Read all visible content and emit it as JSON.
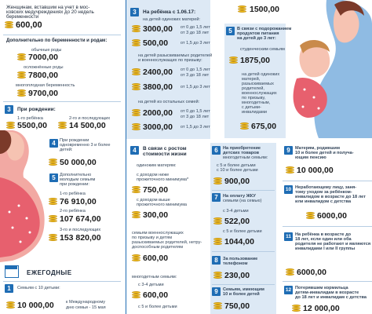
{
  "left": {
    "top_amt": "600,00",
    "top_text": [
      "Женщинам, вставшим на учет в мос-",
      "ковских медучреждениях до 20 недель",
      "беременности"
    ],
    "s2_title": "Дополнительно по беременности и родам:",
    "s2_l1": "обычные роды",
    "s2_a1": "7000,00",
    "s2_l2": "осложнённые роды",
    "s2_a2": "7800,00",
    "s2_l3": "многоплодная беременность",
    "s2_a3": "9700,00",
    "s3_num": "3",
    "s3_title": "При рождении:",
    "s3_l1": "1-го ребёнка",
    "s3_a1": "5500,00",
    "s3_l2": "2-го и последующих",
    "s3_a2": "14 500,00",
    "s4_num": "4",
    "s4_text": [
      "При рождении",
      "одновременно 3 и более",
      "детей:"
    ],
    "s4_amt": "50 000,00",
    "s5_num": "5",
    "s5_text": [
      "Дополнительно",
      "молодым семьям",
      "при рождении:"
    ],
    "s5_l1": "1-го ребёнка",
    "s5_a1": "76 910,00",
    "s5_l2": "2-го ребёнка",
    "s5_a2": "107 674,00",
    "s5_l3": "3-го и последующих",
    "s5_a3": "153 820,00",
    "yearly_title": "ЕЖЕГОДНЫЕ",
    "y1_num": "1",
    "y1_text": "Семьям с 10 детьми:",
    "y1_amt": "10 000,00",
    "y1_note": [
      "к Международному",
      "дню семьи - 15 мая"
    ]
  },
  "middle": {
    "top_amt": "1500,00",
    "m3_num": "3",
    "m3_title": "На ребёнка с 1.06.17:",
    "m3_sub1": "на детей одиноких матерей:",
    "m3_a1": "3000,00",
    "m3_r1": "от 0 до 1,5 лет",
    "m3_a1b": "3000,00",
    "m3_r1b": "от 3 до 18 лет",
    "m3_a2": "500,00",
    "m3_r2": "от 1,5 до 3 лет",
    "m3_sub2": [
      "на детей разыскиваемых родителей",
      "и военнослужащих по призыву:"
    ],
    "m3_a3": "2400,00",
    "m3_r3": "от 0 до 1,5 лет",
    "m3_r3b": "от 3 до 18 лет",
    "m3_a4": "3800,00",
    "m3_r4": "от 1,5 до 3 лет",
    "m3_sub3": "на детей из остальных семей:",
    "m3_a5": "2000,00",
    "m3_r5": "от 0 до 1,5 лет",
    "m3_r5b": "от 3 до 18 лет",
    "m3_a6": "3000,00",
    "m3_r6": "от 1,5 до 3 лет",
    "m4_num": "4",
    "m4_title": [
      "В связи с ростом",
      "стоимости жизни"
    ],
    "m4_sub1": "одиноким матерям:",
    "m4_l1": [
      "с доходом ниже",
      "прожиточного минимума*"
    ],
    "m4_a1": "750,00",
    "m4_l2": [
      "с доходом выше",
      "прожиточного минимума"
    ],
    "m4_a2": "300,00",
    "m4_sub2": [
      "семьям военнослужащих",
      "по призыву и детям",
      "разыскиваемых родителей, нетру-",
      "доспособным родителям"
    ],
    "m4_a3": "600,00",
    "m4_sub3": "многодетным семьям:",
    "m4_l4": "с 3-4 детьми",
    "m4_a4": "600,00",
    "m4_l5": "с 5 и более детьми"
  },
  "right": {
    "r5_num": "5",
    "r5_title": [
      "В связи с подорожанием",
      "продуктов питания",
      "на детей до 3 лет:"
    ],
    "r5_sub1": "студенческим семьям",
    "r5_a1": "1875,00",
    "r5_sub2": [
      "на детей одиноких",
      "матерей,",
      "разыскиваемых",
      "родителей,",
      "военнослужащих",
      "по призыву,",
      "многодетным,",
      "с детьми-",
      "инвалидами"
    ],
    "r5_a2": "675,00",
    "r6_num": "6",
    "r6_title": [
      "На приобретение",
      "детских товаров",
      "многодетным семьям:"
    ],
    "r6_l1": "с 5 и более детьми",
    "r6_l2": "с 10 и более детьми",
    "r6_a": "900,00",
    "r7_num": "7",
    "r7_title": [
      "На оплату ЖКУ",
      "семьям (на семью)"
    ],
    "r7_l1": "с 3-4 детьми",
    "r7_a1": "522,00",
    "r7_l2": "с 5 и более детьми",
    "r7_a2": "1044,00",
    "r8_num": "8",
    "r8_title": [
      "За пользование",
      "телефоном"
    ],
    "r8_a": "230,00",
    "r9_num": "9",
    "r9_title": [
      "Семьям, имеющим",
      "10 и более детей"
    ],
    "r9_a": "750,00",
    "f9_num": "9",
    "f9_title": [
      "Матерям, родившим",
      "10 и более детей и получа-",
      "ющим пенсию"
    ],
    "f9_a": "10 000,00",
    "f10_num": "10",
    "f10_title": [
      "Неработающему лицу, заня-",
      "тому уходом за ребёнком-",
      "инвалидом в возрасте до 18 лет",
      "или инвалидом с детства"
    ],
    "f10_a": "6000,00",
    "f11_num": "11",
    "f11_title": [
      "На ребёнка в возрасте до",
      "18 лет, если один или оба",
      "родителя не работают и являются",
      "инвалидами I или II группы"
    ],
    "f11_a": "6000,00",
    "f12_num": "12",
    "f12_title": [
      "Потерявшим кормильца",
      "детям-инвалидам в возрасте",
      "до 18 лет и инвалидам с детства"
    ],
    "f12_a": "12 000,00"
  }
}
